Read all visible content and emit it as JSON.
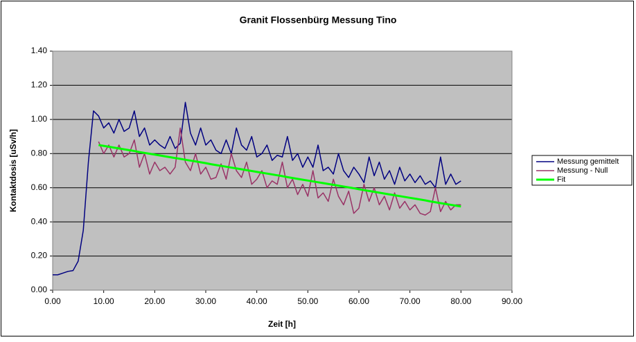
{
  "chart_data": {
    "type": "line",
    "title": "Granit Flossenbürg Messung Tino",
    "x_label": "Zeit [h]",
    "y_label": "Kontaktdosis [uSv/h]",
    "x": [
      0,
      1,
      2,
      3,
      4,
      5,
      6,
      7,
      8,
      9,
      10,
      11,
      12,
      13,
      14,
      15,
      16,
      17,
      18,
      19,
      20,
      21,
      22,
      23,
      24,
      25,
      26,
      27,
      28,
      29,
      30,
      31,
      32,
      33,
      34,
      35,
      36,
      37,
      38,
      39,
      40,
      41,
      42,
      43,
      44,
      45,
      46,
      47,
      48,
      49,
      50,
      51,
      52,
      53,
      54,
      55,
      56,
      57,
      58,
      59,
      60,
      61,
      62,
      63,
      64,
      65,
      66,
      67,
      68,
      69,
      70,
      71,
      72,
      73,
      74,
      75,
      76,
      77,
      78,
      79,
      80
    ],
    "series": [
      {
        "name": "Messung gemittelt",
        "color": "#000080",
        "width": 1.5,
        "values": [
          0.09,
          0.09,
          0.1,
          0.11,
          0.115,
          0.17,
          0.35,
          0.75,
          1.05,
          1.02,
          0.95,
          0.98,
          0.92,
          1.0,
          0.93,
          0.95,
          1.05,
          0.9,
          0.95,
          0.85,
          0.88,
          0.85,
          0.83,
          0.9,
          0.83,
          0.86,
          1.1,
          0.92,
          0.85,
          0.95,
          0.85,
          0.88,
          0.82,
          0.8,
          0.88,
          0.8,
          0.95,
          0.85,
          0.82,
          0.9,
          0.78,
          0.8,
          0.85,
          0.76,
          0.79,
          0.78,
          0.9,
          0.76,
          0.8,
          0.72,
          0.78,
          0.72,
          0.85,
          0.7,
          0.72,
          0.68,
          0.8,
          0.7,
          0.66,
          0.72,
          0.68,
          0.63,
          0.78,
          0.67,
          0.75,
          0.65,
          0.7,
          0.62,
          0.72,
          0.64,
          0.68,
          0.63,
          0.67,
          0.62,
          0.64,
          0.6,
          0.78,
          0.62,
          0.68,
          0.62,
          0.64
        ]
      },
      {
        "name": "Messung - Null",
        "color": "#993366",
        "width": 1.5,
        "values": [
          null,
          null,
          null,
          null,
          null,
          null,
          null,
          null,
          null,
          0.87,
          0.8,
          0.85,
          0.78,
          0.85,
          0.78,
          0.8,
          0.88,
          0.72,
          0.8,
          0.68,
          0.75,
          0.7,
          0.72,
          0.68,
          0.72,
          0.95,
          0.75,
          0.7,
          0.8,
          0.68,
          0.72,
          0.65,
          0.66,
          0.74,
          0.65,
          0.8,
          0.7,
          0.66,
          0.75,
          0.62,
          0.65,
          0.7,
          0.6,
          0.64,
          0.62,
          0.75,
          0.6,
          0.65,
          0.56,
          0.62,
          0.55,
          0.7,
          0.54,
          0.57,
          0.52,
          0.65,
          0.55,
          0.5,
          0.58,
          0.45,
          0.48,
          0.62,
          0.52,
          0.6,
          0.5,
          0.55,
          0.47,
          0.57,
          0.48,
          0.52,
          0.47,
          0.5,
          0.45,
          0.44,
          0.46,
          0.6,
          0.46,
          0.52,
          0.47,
          0.5,
          0.5
        ]
      },
      {
        "name": "Fit",
        "color": "#00ff00",
        "width": 3,
        "values": [
          null,
          null,
          null,
          null,
          null,
          null,
          null,
          null,
          null,
          0.85,
          0.845,
          0.84,
          0.835,
          0.83,
          0.825,
          0.82,
          0.815,
          0.809,
          0.804,
          0.799,
          0.794,
          0.789,
          0.784,
          0.779,
          0.774,
          0.769,
          0.764,
          0.759,
          0.754,
          0.749,
          0.744,
          0.738,
          0.733,
          0.728,
          0.723,
          0.718,
          0.713,
          0.708,
          0.703,
          0.698,
          0.693,
          0.688,
          0.683,
          0.678,
          0.673,
          0.668,
          0.662,
          0.657,
          0.652,
          0.647,
          0.642,
          0.637,
          0.632,
          0.627,
          0.622,
          0.617,
          0.612,
          0.607,
          0.602,
          0.597,
          0.591,
          0.586,
          0.581,
          0.576,
          0.571,
          0.566,
          0.561,
          0.556,
          0.551,
          0.546,
          0.541,
          0.536,
          0.531,
          0.526,
          0.52,
          0.515,
          0.51,
          0.505,
          0.5,
          0.495,
          0.49
        ]
      }
    ],
    "xlim": [
      0,
      90
    ],
    "ylim": [
      0,
      1.4
    ],
    "xticks": [
      {
        "value": 0,
        "label": "0.00"
      },
      {
        "value": 10,
        "label": "10.00"
      },
      {
        "value": 20,
        "label": "20.00"
      },
      {
        "value": 30,
        "label": "30.00"
      },
      {
        "value": 40,
        "label": "40.00"
      },
      {
        "value": 50,
        "label": "50.00"
      },
      {
        "value": 60,
        "label": "60.00"
      },
      {
        "value": 70,
        "label": "70.00"
      },
      {
        "value": 80,
        "label": "80.00"
      },
      {
        "value": 90,
        "label": "90.00"
      }
    ],
    "yticks": [
      {
        "value": 0,
        "label": "0.00"
      },
      {
        "value": 0.2,
        "label": "0.20"
      },
      {
        "value": 0.4,
        "label": "0.40"
      },
      {
        "value": 0.6,
        "label": "0.60"
      },
      {
        "value": 0.8,
        "label": "0.80"
      },
      {
        "value": 1.0,
        "label": "1.00"
      },
      {
        "value": 1.2,
        "label": "1.20"
      },
      {
        "value": 1.4,
        "label": "1.40"
      }
    ],
    "grid": true,
    "plot_background": "#c0c0c0",
    "legend": "right"
  }
}
